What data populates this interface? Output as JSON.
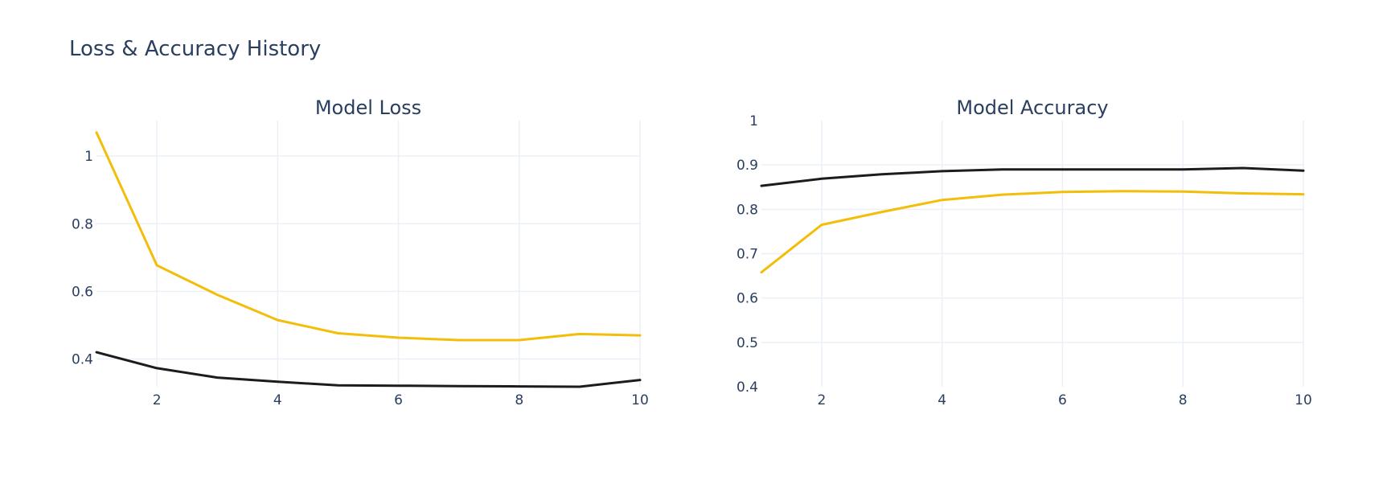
{
  "figure": {
    "title": "Loss & Accuracy History"
  },
  "colors": {
    "train": "#f2be0a",
    "val": "#1c1c1c"
  },
  "chart_data": [
    {
      "type": "line",
      "title": "Model Loss",
      "xlabel": "",
      "ylabel": "",
      "x": [
        1,
        2,
        3,
        4,
        5,
        6,
        7,
        8,
        9,
        10
      ],
      "xlim": [
        1,
        10
      ],
      "ylim": [
        0.318,
        1.105
      ],
      "xticks": [
        2,
        4,
        6,
        8,
        10
      ],
      "yticks": [
        0.4,
        0.6,
        0.8,
        1
      ],
      "ytick_labels": [
        "0.4",
        "0.6",
        "0.8",
        "1"
      ],
      "grid": true,
      "series": [
        {
          "key": "train",
          "values": [
            1.07,
            0.677,
            0.59,
            0.515,
            0.476,
            0.463,
            0.456,
            0.456,
            0.474,
            0.47
          ]
        },
        {
          "key": "val",
          "values": [
            0.42,
            0.373,
            0.345,
            0.333,
            0.322,
            0.321,
            0.32,
            0.319,
            0.318,
            0.338
          ]
        }
      ]
    },
    {
      "type": "line",
      "title": "Model Accuracy",
      "xlabel": "",
      "ylabel": "",
      "x": [
        1,
        2,
        3,
        4,
        5,
        6,
        7,
        8,
        9,
        10
      ],
      "xlim": [
        1,
        10
      ],
      "ylim": [
        0.4,
        1
      ],
      "xticks": [
        2,
        4,
        6,
        8,
        10
      ],
      "yticks": [
        0.4,
        0.5,
        0.6,
        0.7,
        0.8,
        0.9,
        1
      ],
      "ytick_labels": [
        "0.4",
        "0.5",
        "0.6",
        "0.7",
        "0.8",
        "0.9",
        "1"
      ],
      "grid": true,
      "series": [
        {
          "key": "val",
          "values": [
            0.853,
            0.869,
            0.879,
            0.886,
            0.89,
            0.89,
            0.89,
            0.89,
            0.893,
            0.887
          ]
        },
        {
          "key": "train",
          "values": [
            0.658,
            0.765,
            0.794,
            0.821,
            0.833,
            0.839,
            0.841,
            0.84,
            0.836,
            0.834
          ]
        }
      ]
    }
  ]
}
